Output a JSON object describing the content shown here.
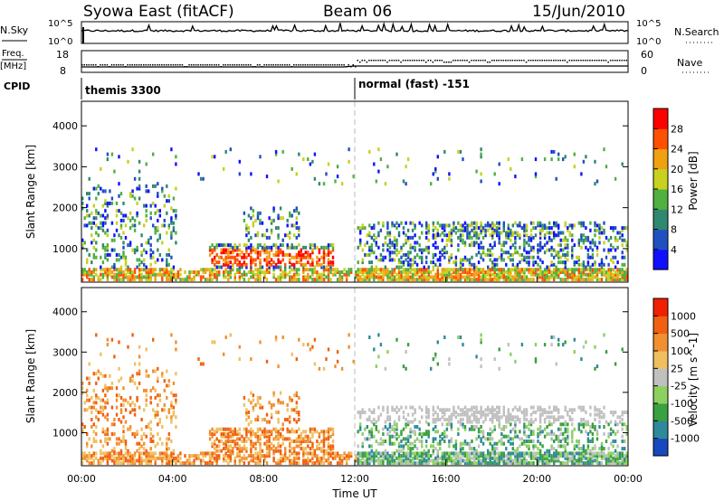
{
  "header": {
    "title": "Syowa East (fitACF)",
    "beam": "Beam 06",
    "date": "15/Jun/2010"
  },
  "status_panels": {
    "nsky_label": "N.Sky",
    "nsky_ticks": [
      "10^5",
      "10^0"
    ],
    "nsearch_label": "N.Search",
    "nsearch_ticks": [
      "10^5",
      "10^0"
    ],
    "freq_label_top": "Freq.",
    "freq_label_unit": "[MHz]",
    "freq_ticks": [
      "18",
      "8"
    ],
    "nave_label": "Nave",
    "nave_ticks": [
      "60",
      "0"
    ],
    "cpid_label": "CPID",
    "cpid_segments": [
      {
        "name": "themis 3300",
        "start_hour": 0
      },
      {
        "name": "normal (fast) -151",
        "start_hour": 12
      }
    ]
  },
  "chart_data": [
    {
      "type": "heatmap",
      "panel": "power",
      "ylabel": "Slant Range [km]",
      "xlabel": "",
      "ylim": [
        180,
        4600
      ],
      "yticks": [
        1000,
        2000,
        3000,
        4000
      ],
      "xlim": [
        0,
        24
      ],
      "colorbar": {
        "label": "Power [dB]",
        "ticks": [
          "28",
          "24",
          "20",
          "16",
          "12",
          "8",
          "4"
        ],
        "colors": [
          "#1010ff",
          "#2050c0",
          "#308870",
          "#50b040",
          "#c8d020",
          "#f0a010",
          "#ff5000",
          "#ff0000"
        ]
      }
    },
    {
      "type": "heatmap",
      "panel": "velocity",
      "ylabel": "Slant Range [km]",
      "xlabel": "Time UT",
      "ylim": [
        180,
        4600
      ],
      "yticks": [
        1000,
        2000,
        3000,
        4000
      ],
      "xlim": [
        0,
        24
      ],
      "xticks": [
        "00:00",
        "04:00",
        "08:00",
        "12:00",
        "16:00",
        "20:00",
        "00:00"
      ],
      "colorbar": {
        "label": "Velocity [m s^-1]",
        "ticks": [
          "1000",
          "500",
          "100",
          "25",
          "-25",
          "-100",
          "-500",
          "-1000"
        ],
        "colors": [
          "#1848c0",
          "#2e8a9a",
          "#3aa040",
          "#8cd060",
          "#c0c0c0",
          "#f0c060",
          "#f09030",
          "#f06010",
          "#f02000"
        ]
      }
    }
  ]
}
